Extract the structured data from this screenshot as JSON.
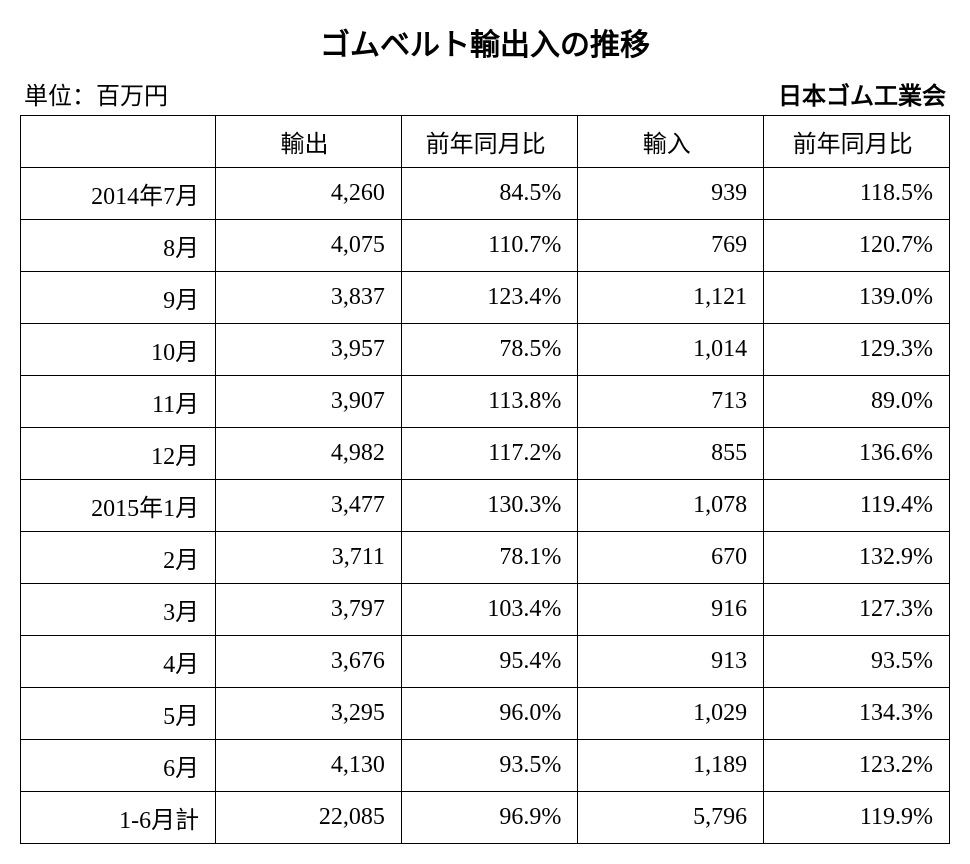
{
  "title": "ゴムベルト輸出入の推移",
  "unit_label": "単位：百万円",
  "source_label": "日本ゴム工業会",
  "table": {
    "type": "table",
    "text_color": "#000000",
    "border_color": "#000000",
    "background_color": "#ffffff",
    "title_fontsize": 30,
    "header_fontsize": 24,
    "cell_fontsize": 24,
    "columns": [
      "",
      "輸出",
      "前年同月比",
      "輸入",
      "前年同月比"
    ],
    "col_widths_pct": [
      21,
      20,
      19,
      20,
      20
    ],
    "col_align": [
      "right",
      "right",
      "right",
      "right",
      "right"
    ],
    "header_align": "center",
    "rows": [
      [
        "2014年7月",
        "4,260",
        "84.5%",
        "939",
        "118.5%"
      ],
      [
        "8月",
        "4,075",
        "110.7%",
        "769",
        "120.7%"
      ],
      [
        "9月",
        "3,837",
        "123.4%",
        "1,121",
        "139.0%"
      ],
      [
        "10月",
        "3,957",
        "78.5%",
        "1,014",
        "129.3%"
      ],
      [
        "11月",
        "3,907",
        "113.8%",
        "713",
        "89.0%"
      ],
      [
        "12月",
        "4,982",
        "117.2%",
        "855",
        "136.6%"
      ],
      [
        "2015年1月",
        "3,477",
        "130.3%",
        "1,078",
        "119.4%"
      ],
      [
        "2月",
        "3,711",
        "78.1%",
        "670",
        "132.9%"
      ],
      [
        "3月",
        "3,797",
        "103.4%",
        "916",
        "127.3%"
      ],
      [
        "4月",
        "3,676",
        "95.4%",
        "913",
        "93.5%"
      ],
      [
        "5月",
        "3,295",
        "96.0%",
        "1,029",
        "134.3%"
      ],
      [
        "6月",
        "4,130",
        "93.5%",
        "1,189",
        "123.2%"
      ],
      [
        "1-6月計",
        "22,085",
        "96.9%",
        "5,796",
        "119.9%"
      ]
    ]
  }
}
